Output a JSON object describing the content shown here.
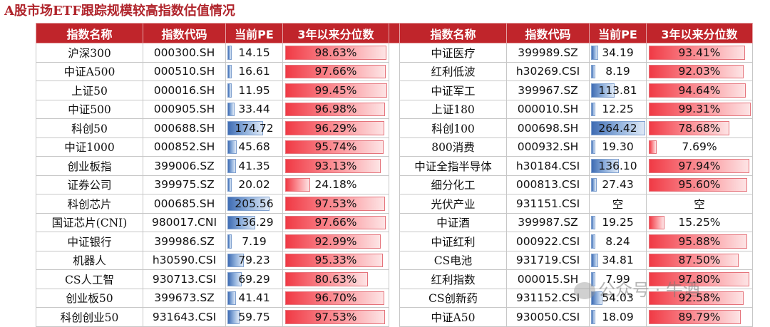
{
  "title": "A股市场ETF跟踪规模较高指数估值情况",
  "watermark": "公众号 · 牛酒",
  "headers": [
    "指数名称",
    "指数代码",
    "当前PE",
    "3年以来分位数"
  ],
  "colors": {
    "header_bg": "#c0252b",
    "pe_bar": "#3f6cb3",
    "pct_bar": "#f03a45"
  },
  "chart_data": {
    "type": "table",
    "pe_bar_max": 264.42,
    "left_rows": [
      {
        "name": "沪深300",
        "code": "000300.SH",
        "pe": "14.15",
        "pct": "98.63%",
        "pe_num": 14.15,
        "pct_num": 98.63
      },
      {
        "name": "中证A500",
        "code": "000510.SH",
        "pe": "16.61",
        "pct": "97.66%",
        "pe_num": 16.61,
        "pct_num": 97.66
      },
      {
        "name": "上证50",
        "code": "000016.SH",
        "pe": "11.95",
        "pct": "99.45%",
        "pe_num": 11.95,
        "pct_num": 99.45
      },
      {
        "name": "中证500",
        "code": "000905.SH",
        "pe": "33.44",
        "pct": "96.98%",
        "pe_num": 33.44,
        "pct_num": 96.98
      },
      {
        "name": "科创50",
        "code": "000688.SH",
        "pe": "174.72",
        "pct": "96.29%",
        "pe_num": 174.72,
        "pct_num": 96.29
      },
      {
        "name": "中证1000",
        "code": "000852.SH",
        "pe": "45.68",
        "pct": "95.74%",
        "pe_num": 45.68,
        "pct_num": 95.74
      },
      {
        "name": "创业板指",
        "code": "399006.SZ",
        "pe": "41.35",
        "pct": "93.13%",
        "pe_num": 41.35,
        "pct_num": 93.13
      },
      {
        "name": "证券公司",
        "code": "399975.SZ",
        "pe": "20.02",
        "pct": "24.18%",
        "pe_num": 20.02,
        "pct_num": 24.18
      },
      {
        "name": "科创芯片",
        "code": "000685.SH",
        "pe": "205.56",
        "pct": "97.53%",
        "pe_num": 205.56,
        "pct_num": 97.53
      },
      {
        "name": "国证芯片(CNI)",
        "code": "980017.CNI",
        "pe": "136.29",
        "pct": "97.66%",
        "pe_num": 136.29,
        "pct_num": 97.66
      },
      {
        "name": "中证银行",
        "code": "399986.SZ",
        "pe": "7.19",
        "pct": "92.99%",
        "pe_num": 7.19,
        "pct_num": 92.99
      },
      {
        "name": "机器人",
        "code": "h30590.CSI",
        "pe": "79.23",
        "pct": "95.33%",
        "pe_num": 79.23,
        "pct_num": 95.33
      },
      {
        "name": "CS人工智",
        "code": "930713.CSI",
        "pe": "69.29",
        "pct": "80.63%",
        "pe_num": 69.29,
        "pct_num": 80.63
      },
      {
        "name": "创业板50",
        "code": "399673.SZ",
        "pe": "41.41",
        "pct": "96.70%",
        "pe_num": 41.41,
        "pct_num": 96.7
      },
      {
        "name": "科创创业50",
        "code": "931643.CSI",
        "pe": "59.75",
        "pct": "97.53%",
        "pe_num": 59.75,
        "pct_num": 97.53
      }
    ],
    "right_rows": [
      {
        "name": "中证医疗",
        "code": "399989.SZ",
        "pe": "34.19",
        "pct": "93.41%",
        "pe_num": 34.19,
        "pct_num": 93.41
      },
      {
        "name": "红利低波",
        "code": "h30269.CSI",
        "pe": "8.19",
        "pct": "92.03%",
        "pe_num": 8.19,
        "pct_num": 92.03
      },
      {
        "name": "中证军工",
        "code": "399967.SZ",
        "pe": "113.81",
        "pct": "94.64%",
        "pe_num": 113.81,
        "pct_num": 94.64
      },
      {
        "name": "上证180",
        "code": "000010.SH",
        "pe": "12.25",
        "pct": "99.31%",
        "pe_num": 12.25,
        "pct_num": 99.31
      },
      {
        "name": "科创100",
        "code": "000698.SH",
        "pe": "264.42",
        "pct": "78.68%",
        "pe_num": 264.42,
        "pct_num": 78.68
      },
      {
        "name": "800消费",
        "code": "000932.SH",
        "pe": "19.30",
        "pct": "7.69%",
        "pe_num": 19.3,
        "pct_num": 7.69
      },
      {
        "name": "中证全指半导体",
        "code": "h30184.CSI",
        "pe": "136.10",
        "pct": "97.94%",
        "pe_num": 136.1,
        "pct_num": 97.94
      },
      {
        "name": "细分化工",
        "code": "000813.CSI",
        "pe": "27.43",
        "pct": "95.60%",
        "pe_num": 27.43,
        "pct_num": 95.6
      },
      {
        "name": "光伏产业",
        "code": "931151.CSI",
        "pe": "空",
        "pct": "空",
        "pe_num": 0,
        "pct_num": 0
      },
      {
        "name": "中证酒",
        "code": "399987.SZ",
        "pe": "19.25",
        "pct": "15.25%",
        "pe_num": 19.25,
        "pct_num": 15.25
      },
      {
        "name": "中证红利",
        "code": "000922.CSI",
        "pe": "8.24",
        "pct": "95.88%",
        "pe_num": 8.24,
        "pct_num": 95.88
      },
      {
        "name": "CS电池",
        "code": "931719.CSI",
        "pe": "34.81",
        "pct": "87.50%",
        "pe_num": 34.81,
        "pct_num": 87.5
      },
      {
        "name": "红利指数",
        "code": "000015.SH",
        "pe": "7.99",
        "pct": "97.80%",
        "pe_num": 7.99,
        "pct_num": 97.8
      },
      {
        "name": "CS创新药",
        "code": "931152.CSI",
        "pe": "54.03",
        "pct": "92.58%",
        "pe_num": 54.03,
        "pct_num": 92.58
      },
      {
        "name": "中证A50",
        "code": "930050.CSI",
        "pe": "18.09",
        "pct": "89.79%",
        "pe_num": 18.09,
        "pct_num": 89.79
      }
    ]
  }
}
